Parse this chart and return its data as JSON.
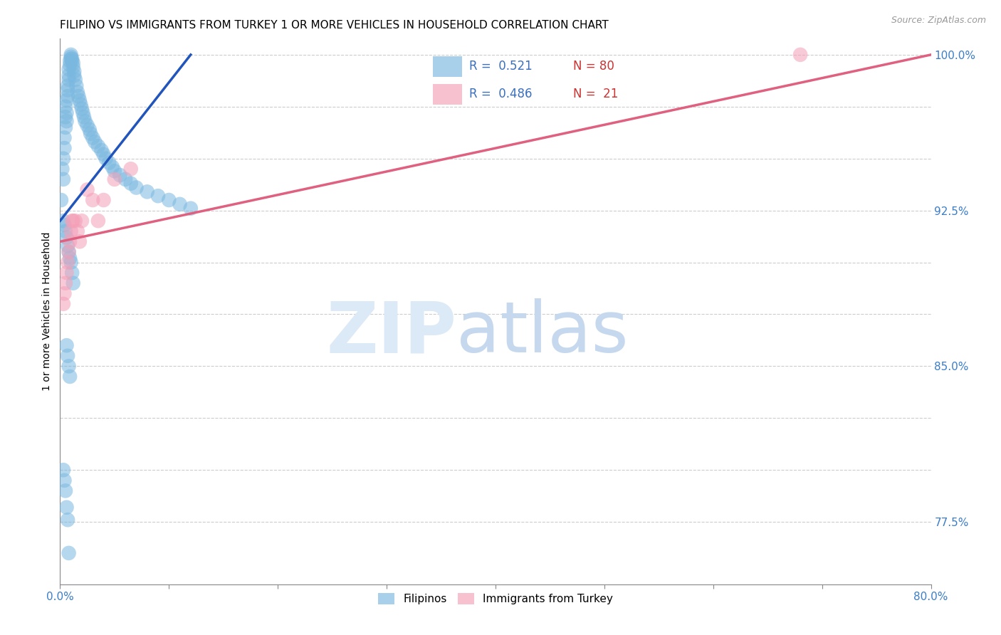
{
  "title": "FILIPINO VS IMMIGRANTS FROM TURKEY 1 OR MORE VEHICLES IN HOUSEHOLD CORRELATION CHART",
  "source": "Source: ZipAtlas.com",
  "ylabel": "1 or more Vehicles in Household",
  "xmin": 0.0,
  "xmax": 0.8,
  "ymin": 0.745,
  "ymax": 1.008,
  "color_filipino": "#7ab8e0",
  "color_turkey": "#f4a0b8",
  "trendline_filipino": "#2255bb",
  "trendline_turkey": "#e06080",
  "legend_label1": "Filipinos",
  "legend_label2": "Immigrants from Turkey",
  "filipino_x": [
    0.001,
    0.002,
    0.003,
    0.003,
    0.004,
    0.004,
    0.005,
    0.005,
    0.005,
    0.006,
    0.006,
    0.006,
    0.007,
    0.007,
    0.007,
    0.008,
    0.008,
    0.008,
    0.009,
    0.009,
    0.01,
    0.01,
    0.01,
    0.011,
    0.011,
    0.012,
    0.012,
    0.013,
    0.013,
    0.014,
    0.015,
    0.016,
    0.017,
    0.018,
    0.019,
    0.02,
    0.021,
    0.022,
    0.023,
    0.025,
    0.027,
    0.028,
    0.03,
    0.032,
    0.035,
    0.038,
    0.04,
    0.042,
    0.045,
    0.048,
    0.05,
    0.055,
    0.06,
    0.065,
    0.07,
    0.08,
    0.09,
    0.1,
    0.11,
    0.12,
    0.003,
    0.004,
    0.005,
    0.006,
    0.007,
    0.008,
    0.009,
    0.01,
    0.011,
    0.012,
    0.006,
    0.007,
    0.008,
    0.009,
    0.003,
    0.004,
    0.005,
    0.006,
    0.007,
    0.008
  ],
  "filipino_y": [
    0.93,
    0.945,
    0.95,
    0.94,
    0.955,
    0.96,
    0.965,
    0.97,
    0.975,
    0.968,
    0.972,
    0.978,
    0.98,
    0.983,
    0.985,
    0.988,
    0.99,
    0.993,
    0.995,
    0.997,
    0.998,
    0.999,
    1.0,
    0.997,
    0.998,
    0.996,
    0.994,
    0.992,
    0.99,
    0.988,
    0.985,
    0.982,
    0.98,
    0.978,
    0.976,
    0.974,
    0.972,
    0.97,
    0.968,
    0.966,
    0.964,
    0.962,
    0.96,
    0.958,
    0.956,
    0.954,
    0.952,
    0.95,
    0.948,
    0.946,
    0.944,
    0.942,
    0.94,
    0.938,
    0.936,
    0.934,
    0.932,
    0.93,
    0.928,
    0.926,
    0.92,
    0.918,
    0.915,
    0.912,
    0.908,
    0.905,
    0.902,
    0.9,
    0.895,
    0.89,
    0.86,
    0.855,
    0.85,
    0.845,
    0.8,
    0.795,
    0.79,
    0.782,
    0.776,
    0.76
  ],
  "turkey_x": [
    0.003,
    0.004,
    0.005,
    0.006,
    0.007,
    0.008,
    0.009,
    0.01,
    0.011,
    0.012,
    0.014,
    0.016,
    0.018,
    0.02,
    0.025,
    0.03,
    0.035,
    0.04,
    0.05,
    0.065,
    0.68
  ],
  "turkey_y": [
    0.88,
    0.885,
    0.89,
    0.895,
    0.9,
    0.905,
    0.91,
    0.915,
    0.92,
    0.92,
    0.92,
    0.915,
    0.91,
    0.92,
    0.935,
    0.93,
    0.92,
    0.93,
    0.94,
    0.945,
    1.0
  ],
  "trendline_f_x0": 0.0,
  "trendline_f_y0": 0.92,
  "trendline_f_x1": 0.12,
  "trendline_f_y1": 1.0,
  "trendline_t_x0": 0.0,
  "trendline_t_y0": 0.91,
  "trendline_t_x1": 0.8,
  "trendline_t_y1": 1.0
}
